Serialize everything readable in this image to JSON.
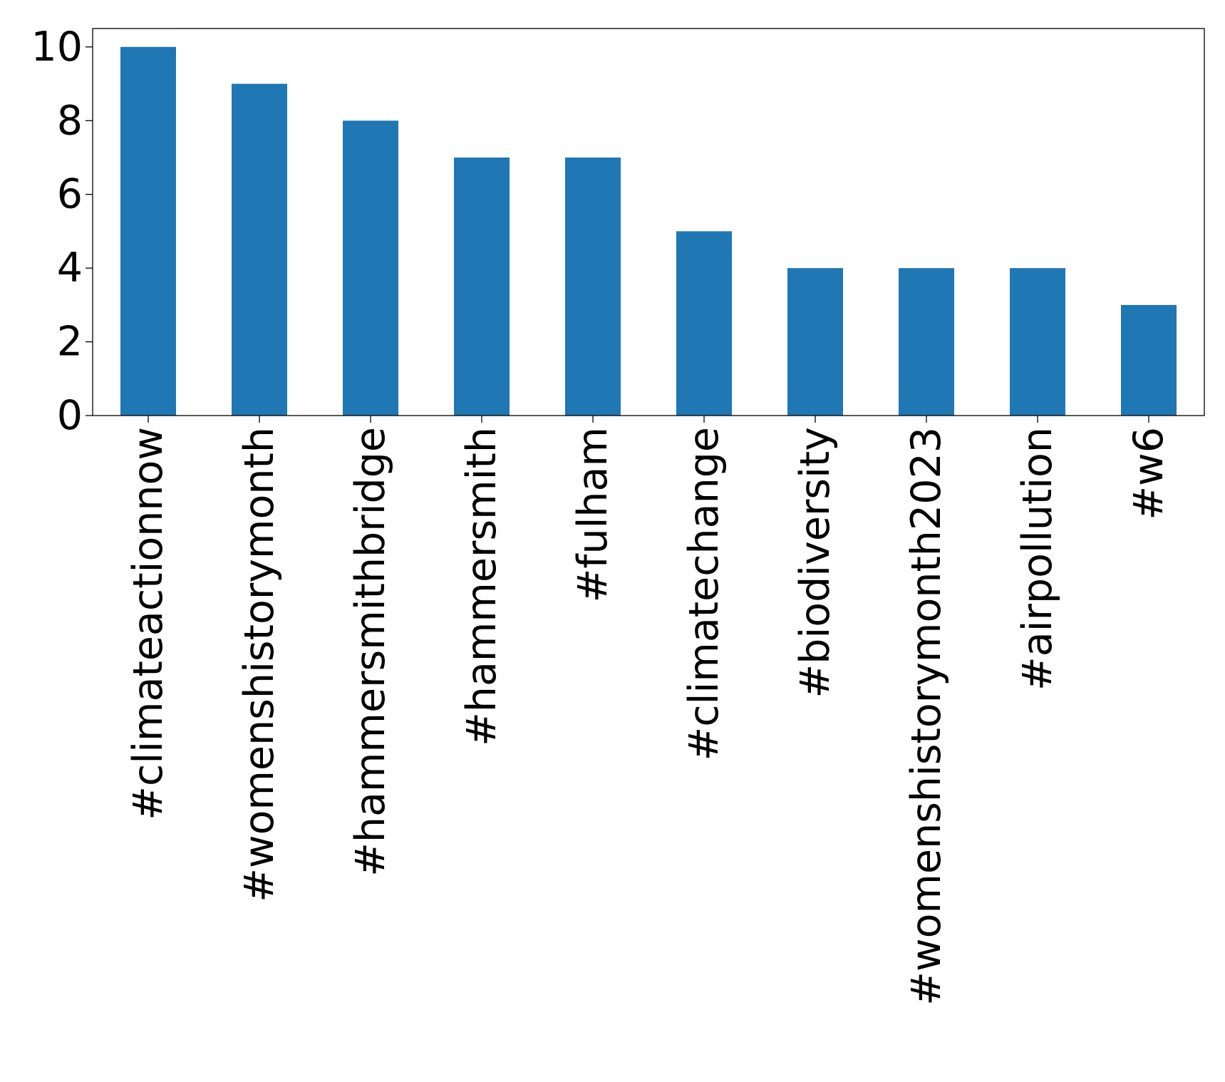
{
  "chart_data": {
    "type": "bar",
    "categories": [
      "#climateactionnow",
      "#womenshistorymonth",
      "#hammersmithbridge",
      "#hammersmith",
      "#fulham",
      "#climatechange",
      "#biodiversity",
      "#womenshistorymonth2023",
      "#airpollution",
      "#w6"
    ],
    "values": [
      10,
      9,
      8,
      7,
      7,
      5,
      4,
      4,
      4,
      3
    ],
    "title": "",
    "xlabel": "",
    "ylabel": "",
    "ylim": [
      0,
      10.5
    ],
    "yticks": [
      "0",
      "2",
      "4",
      "6",
      "8",
      "10"
    ],
    "bar_color": "#1f77b4",
    "grid": false,
    "legend": "none"
  }
}
